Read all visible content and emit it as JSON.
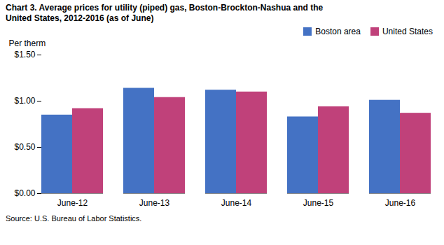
{
  "chart_data": {
    "type": "bar",
    "title": "Chart 3. Average prices for utility (piped) gas, Boston-Brockton-Nashua and the\nUnited States, 2012-2016 (as of June)",
    "ylabel": "Per therm",
    "source": "Source: U.S. Bureau of Labor Statistics.",
    "categories": [
      "June-12",
      "June-13",
      "June-14",
      "June-15",
      "June-16"
    ],
    "series": [
      {
        "name": "Boston area",
        "color": "#4472C4",
        "values": [
          0.85,
          1.14,
          1.12,
          0.83,
          1.01
        ]
      },
      {
        "name": "United States",
        "color": "#C0417A",
        "values": [
          0.92,
          1.04,
          1.1,
          0.94,
          0.87
        ]
      }
    ],
    "ylim": [
      0,
      1.5
    ],
    "yticks": [
      {
        "value": 0.0,
        "label": "$0.00"
      },
      {
        "value": 0.5,
        "label": "$0.50"
      },
      {
        "value": 1.0,
        "label": "$1.00"
      },
      {
        "value": 1.5,
        "label": "$1.50"
      }
    ],
    "legend": "upper right",
    "grid": false
  }
}
